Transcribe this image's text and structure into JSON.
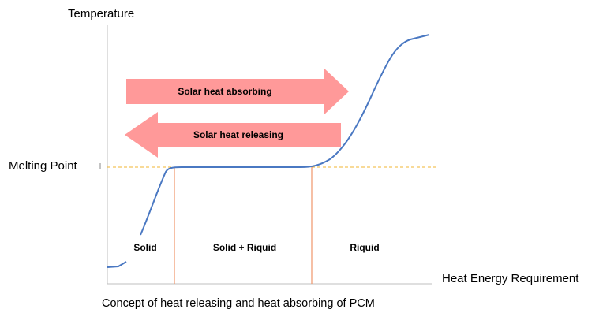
{
  "diagram": {
    "y_axis_label": "Temperature",
    "x_axis_label": "Heat Energy Requirement",
    "melting_point_label": "Melting Point",
    "caption": "Concept of heat releasing and heat absorbing of PCM",
    "arrows": {
      "absorbing": "Solar heat absorbing",
      "releasing": "Solar heat releasing"
    },
    "regions": {
      "solid": "Solid",
      "solid_liquid": "Solid + Riquid",
      "liquid": "Riquid"
    }
  },
  "colors": {
    "curve": "#4a78c2",
    "arrow_fill": "#ff9999",
    "melting_line": "#f2b531",
    "phase_divider": "#f0956a",
    "axis": "#bfbfbf"
  }
}
